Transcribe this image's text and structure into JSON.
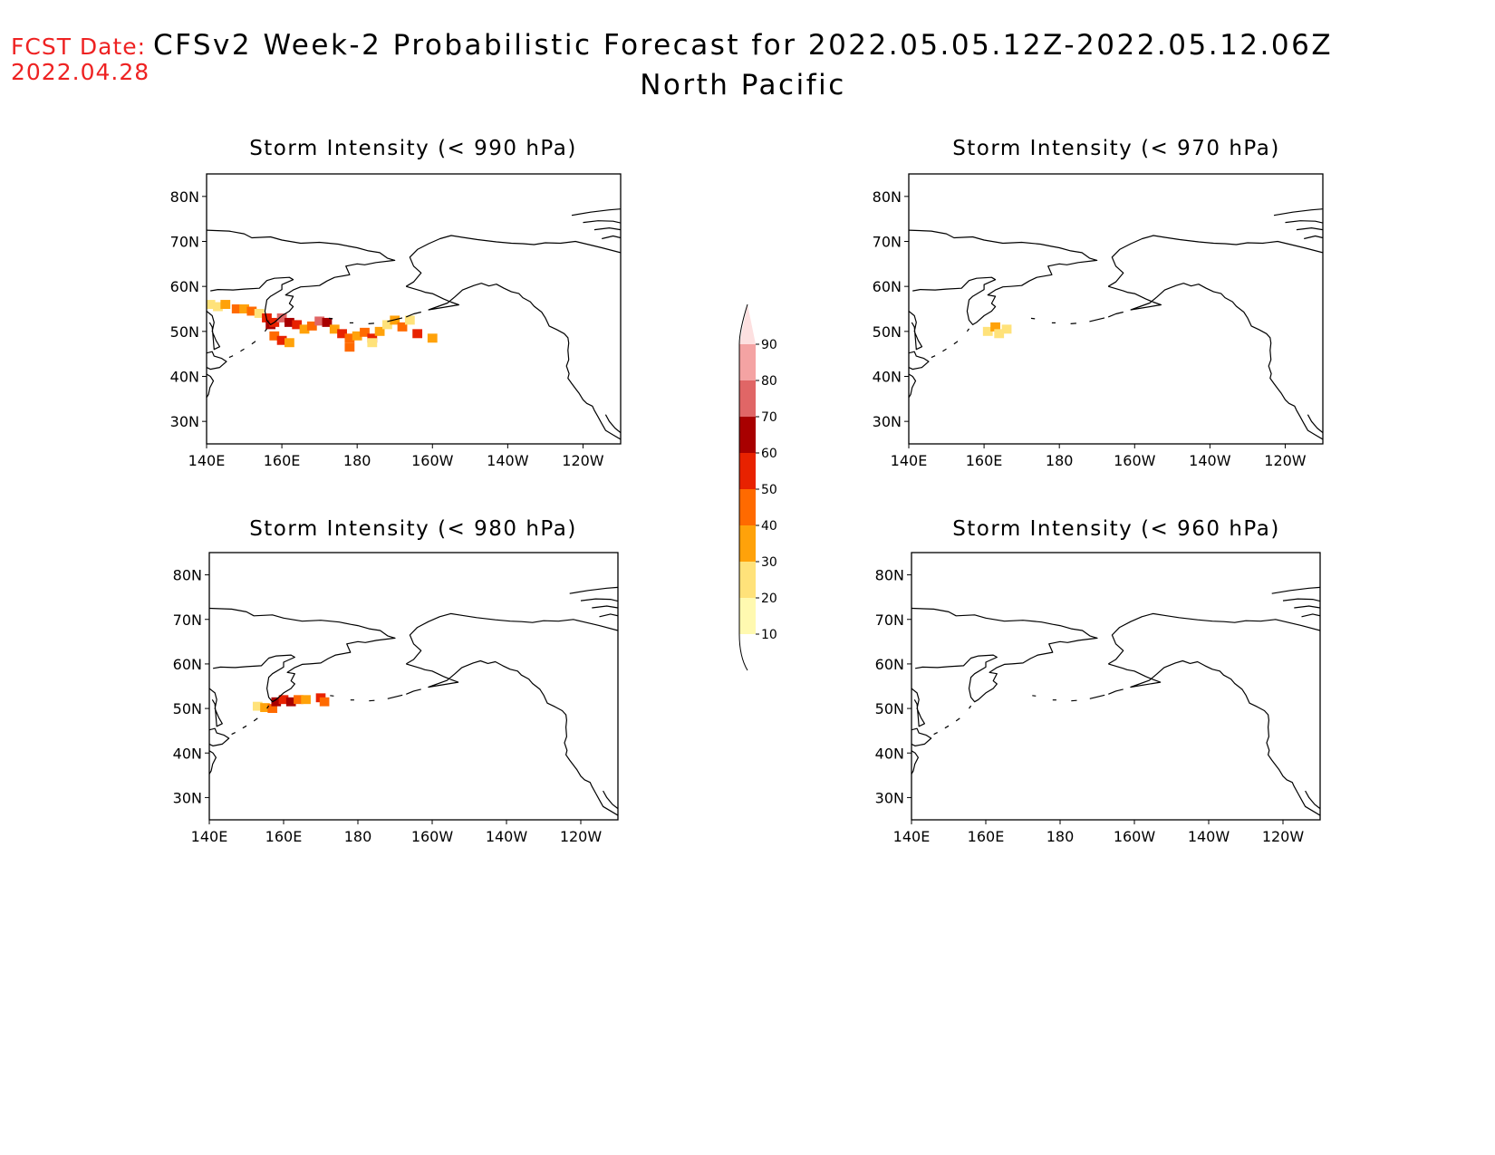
{
  "fcst_date": {
    "label": "FCST Date:",
    "value": "2022.04.28"
  },
  "title": {
    "line1": "CFSv2 Week-2 Probabilistic Forecast for 2022.05.05.12Z-2022.05.12.06Z",
    "line2": "North Pacific"
  },
  "panels": [
    {
      "id": "p990",
      "title": "Storm Intensity (< 990 hPa)"
    },
    {
      "id": "p970",
      "title": "Storm Intensity (< 970 hPa)"
    },
    {
      "id": "p980",
      "title": "Storm Intensity (< 980 hPa)"
    },
    {
      "id": "p960",
      "title": "Storm Intensity (< 960 hPa)"
    }
  ],
  "axes": {
    "lat_labels": [
      "80N",
      "70N",
      "60N",
      "50N",
      "40N",
      "30N"
    ],
    "lon_labels": [
      "140E",
      "160E",
      "180",
      "160W",
      "140W",
      "120W"
    ]
  },
  "colorbar": {
    "levels": [
      "10",
      "20",
      "30",
      "40",
      "50",
      "60",
      "70",
      "80",
      "90"
    ],
    "colors": [
      "#fff9b0",
      "#ffe27a",
      "#ffa20a",
      "#ff6a00",
      "#e82200",
      "#a80000",
      "#e06666",
      "#f4a3a3",
      "#fde0e0"
    ]
  }
}
